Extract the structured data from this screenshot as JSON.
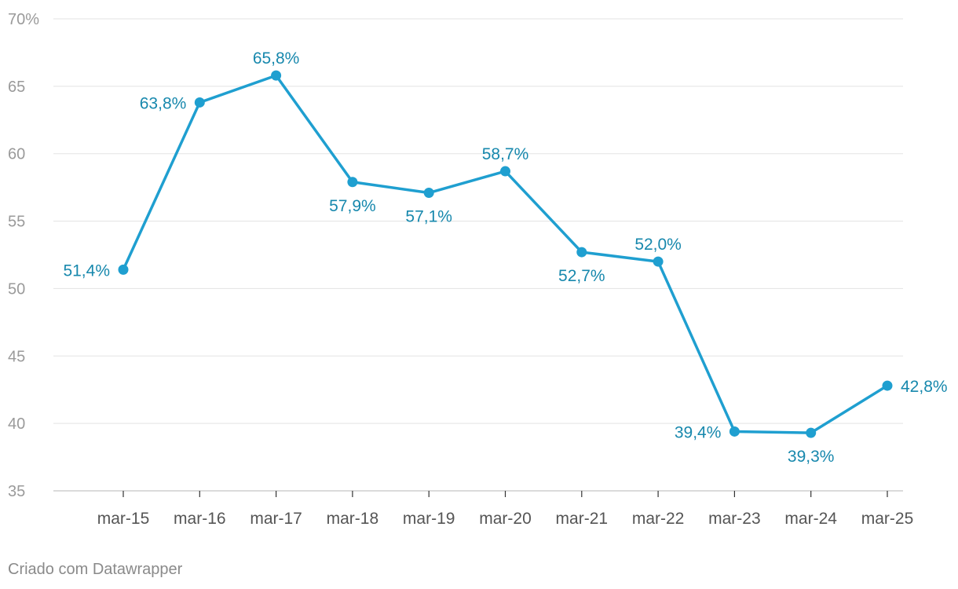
{
  "chart_data": {
    "type": "line",
    "categories": [
      "mar-15",
      "mar-16",
      "mar-17",
      "mar-18",
      "mar-19",
      "mar-20",
      "mar-21",
      "mar-22",
      "mar-23",
      "mar-24",
      "mar-25"
    ],
    "series": [
      {
        "values": [
          51.4,
          63.8,
          65.8,
          57.9,
          57.1,
          58.7,
          52.7,
          52.0,
          39.4,
          39.3,
          42.8
        ],
        "data_labels": [
          "51,4%",
          "63,8%",
          "65,8%",
          "57,9%",
          "57,1%",
          "58,7%",
          "52,7%",
          "52,0%",
          "39,4%",
          "39,3%",
          "42,8%"
        ]
      }
    ],
    "ylim": [
      35,
      70
    ],
    "y_ticks": [
      35,
      40,
      45,
      50,
      55,
      60,
      65,
      70
    ],
    "y_tick_labels": [
      "35",
      "40",
      "45",
      "50",
      "55",
      "60",
      "65",
      "70%"
    ],
    "grid": true,
    "colors": {
      "line": "#1f9fd0",
      "label": "#1788ad",
      "grid": "#e3e3e3",
      "axis_text": "#9a9a9a",
      "x_text": "#555555"
    }
  },
  "footer": {
    "credit": "Criado com Datawrapper"
  }
}
